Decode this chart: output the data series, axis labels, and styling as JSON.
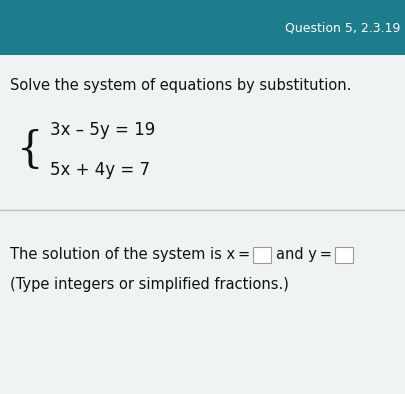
{
  "header_bg_color": "#1e7d8c",
  "header_text": "Question 5, 2.3.19",
  "header_text_color": "#ffffff",
  "body_bg_color": "#e5eaec",
  "divider_color": "#c0c0c0",
  "instruction_text": "Solve the system of equations by substitution.",
  "instruction_fontsize": 10.5,
  "instruction_color": "#111111",
  "eq1": "3x – 5y = 19",
  "eq2": "5x + 4y = 7",
  "eq_fontsize": 12,
  "eq_color": "#111111",
  "solution_part1": "The solution of the system is x =",
  "solution_part2": "and y =",
  "solution_fontsize": 10.5,
  "solution_color": "#111111",
  "type_note": "(Type integers or simplified fractions.)",
  "type_note_fontsize": 10.5,
  "type_note_color": "#111111",
  "box_facecolor": "#ffffff",
  "box_edgecolor": "#999999",
  "brace_fontsize": 30,
  "brace_color": "#111111",
  "fig_width": 4.05,
  "fig_height": 3.94,
  "dpi": 100
}
